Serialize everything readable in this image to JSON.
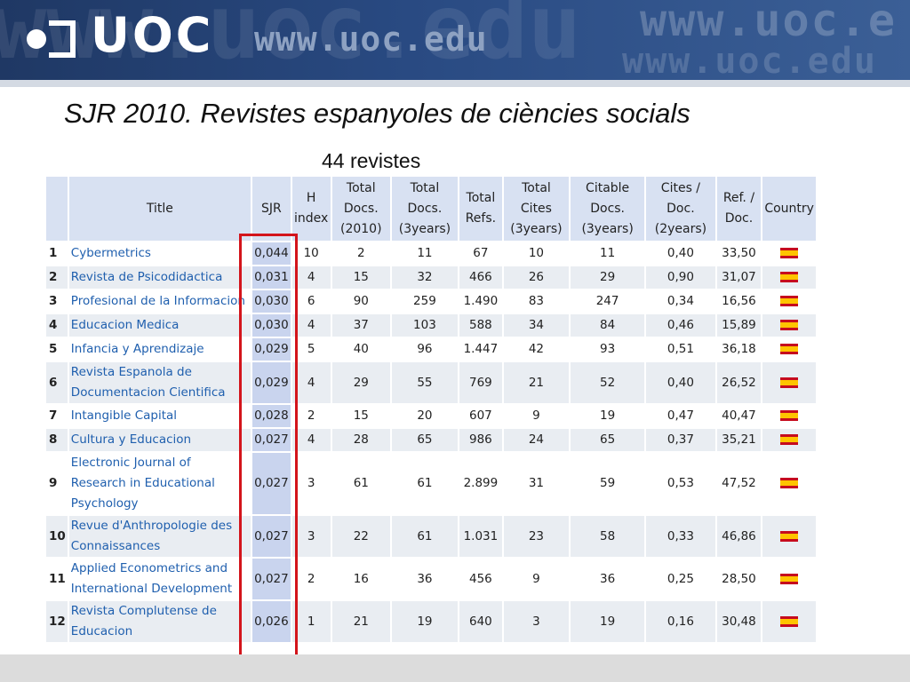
{
  "header": {
    "logo_text": "UOC",
    "url_text": "www.uoc.edu",
    "watermark_large": "www.uoc.edu",
    "watermark_right_1": "www.uoc.e",
    "watermark_right_2": "www.uoc.edu"
  },
  "slide": {
    "title": "SJR 2010. Revistes espanyoles de ciències socials",
    "subtitle": "44 revistes"
  },
  "table": {
    "headers": {
      "rank": "",
      "title": "Title",
      "sjr": "SJR",
      "h_index": "H index",
      "total_docs_2010": "Total Docs. (2010)",
      "total_docs_3y": "Total Docs. (3years)",
      "total_refs": "Total Refs.",
      "total_cites_3y": "Total Cites (3years)",
      "citable_docs_3y": "Citable Docs. (3years)",
      "cites_doc_2y": "Cites / Doc. (2years)",
      "ref_doc": "Ref. / Doc.",
      "country": "Country"
    },
    "rows": [
      {
        "rank": "1",
        "title": "Cybermetrics",
        "sjr": "0,044",
        "h": "10",
        "docs2010": "2",
        "docs3y": "11",
        "refs": "67",
        "cites3y": "10",
        "citable3y": "11",
        "citesdoc": "0,40",
        "refdoc": "33,50",
        "country": "Spain"
      },
      {
        "rank": "2",
        "title": "Revista de Psicodidactica",
        "sjr": "0,031",
        "h": "4",
        "docs2010": "15",
        "docs3y": "32",
        "refs": "466",
        "cites3y": "26",
        "citable3y": "29",
        "citesdoc": "0,90",
        "refdoc": "31,07",
        "country": "Spain"
      },
      {
        "rank": "3",
        "title": "Profesional de la Informacion",
        "sjr": "0,030",
        "h": "6",
        "docs2010": "90",
        "docs3y": "259",
        "refs": "1.490",
        "cites3y": "83",
        "citable3y": "247",
        "citesdoc": "0,34",
        "refdoc": "16,56",
        "country": "Spain"
      },
      {
        "rank": "4",
        "title": "Educacion Medica",
        "sjr": "0,030",
        "h": "4",
        "docs2010": "37",
        "docs3y": "103",
        "refs": "588",
        "cites3y": "34",
        "citable3y": "84",
        "citesdoc": "0,46",
        "refdoc": "15,89",
        "country": "Spain"
      },
      {
        "rank": "5",
        "title": "Infancia y Aprendizaje",
        "sjr": "0,029",
        "h": "5",
        "docs2010": "40",
        "docs3y": "96",
        "refs": "1.447",
        "cites3y": "42",
        "citable3y": "93",
        "citesdoc": "0,51",
        "refdoc": "36,18",
        "country": "Spain"
      },
      {
        "rank": "6",
        "title": "Revista Espanola de Documentacion Cientifica",
        "sjr": "0,029",
        "h": "4",
        "docs2010": "29",
        "docs3y": "55",
        "refs": "769",
        "cites3y": "21",
        "citable3y": "52",
        "citesdoc": "0,40",
        "refdoc": "26,52",
        "country": "Spain"
      },
      {
        "rank": "7",
        "title": "Intangible Capital",
        "sjr": "0,028",
        "h": "2",
        "docs2010": "15",
        "docs3y": "20",
        "refs": "607",
        "cites3y": "9",
        "citable3y": "19",
        "citesdoc": "0,47",
        "refdoc": "40,47",
        "country": "Spain"
      },
      {
        "rank": "8",
        "title": "Cultura y Educacion",
        "sjr": "0,027",
        "h": "4",
        "docs2010": "28",
        "docs3y": "65",
        "refs": "986",
        "cites3y": "24",
        "citable3y": "65",
        "citesdoc": "0,37",
        "refdoc": "35,21",
        "country": "Spain"
      },
      {
        "rank": "9",
        "title": "Electronic Journal of Research in Educational Psychology",
        "sjr": "0,027",
        "h": "3",
        "docs2010": "61",
        "docs3y": "61",
        "refs": "2.899",
        "cites3y": "31",
        "citable3y": "59",
        "citesdoc": "0,53",
        "refdoc": "47,52",
        "country": "Spain"
      },
      {
        "rank": "10",
        "title": "Revue d'Anthropologie des Connaissances",
        "sjr": "0,027",
        "h": "3",
        "docs2010": "22",
        "docs3y": "61",
        "refs": "1.031",
        "cites3y": "23",
        "citable3y": "58",
        "citesdoc": "0,33",
        "refdoc": "46,86",
        "country": "Spain"
      },
      {
        "rank": "11",
        "title": "Applied Econometrics and International Development",
        "sjr": "0,027",
        "h": "2",
        "docs2010": "16",
        "docs3y": "36",
        "refs": "456",
        "cites3y": "9",
        "citable3y": "36",
        "citesdoc": "0,25",
        "refdoc": "28,50",
        "country": "Spain"
      },
      {
        "rank": "12",
        "title": "Revista Complutense de Educacion",
        "sjr": "0,026",
        "h": "1",
        "docs2010": "21",
        "docs3y": "19",
        "refs": "640",
        "cites3y": "3",
        "citable3y": "19",
        "citesdoc": "0,16",
        "refdoc": "30,48",
        "country": "Spain"
      }
    ]
  },
  "colors": {
    "banner": "#294a82",
    "link": "#1f5fae",
    "header_cell": "#d8e1f2",
    "highlight": "#d3141b"
  },
  "icons": {
    "flag": "spain-flag-icon"
  }
}
